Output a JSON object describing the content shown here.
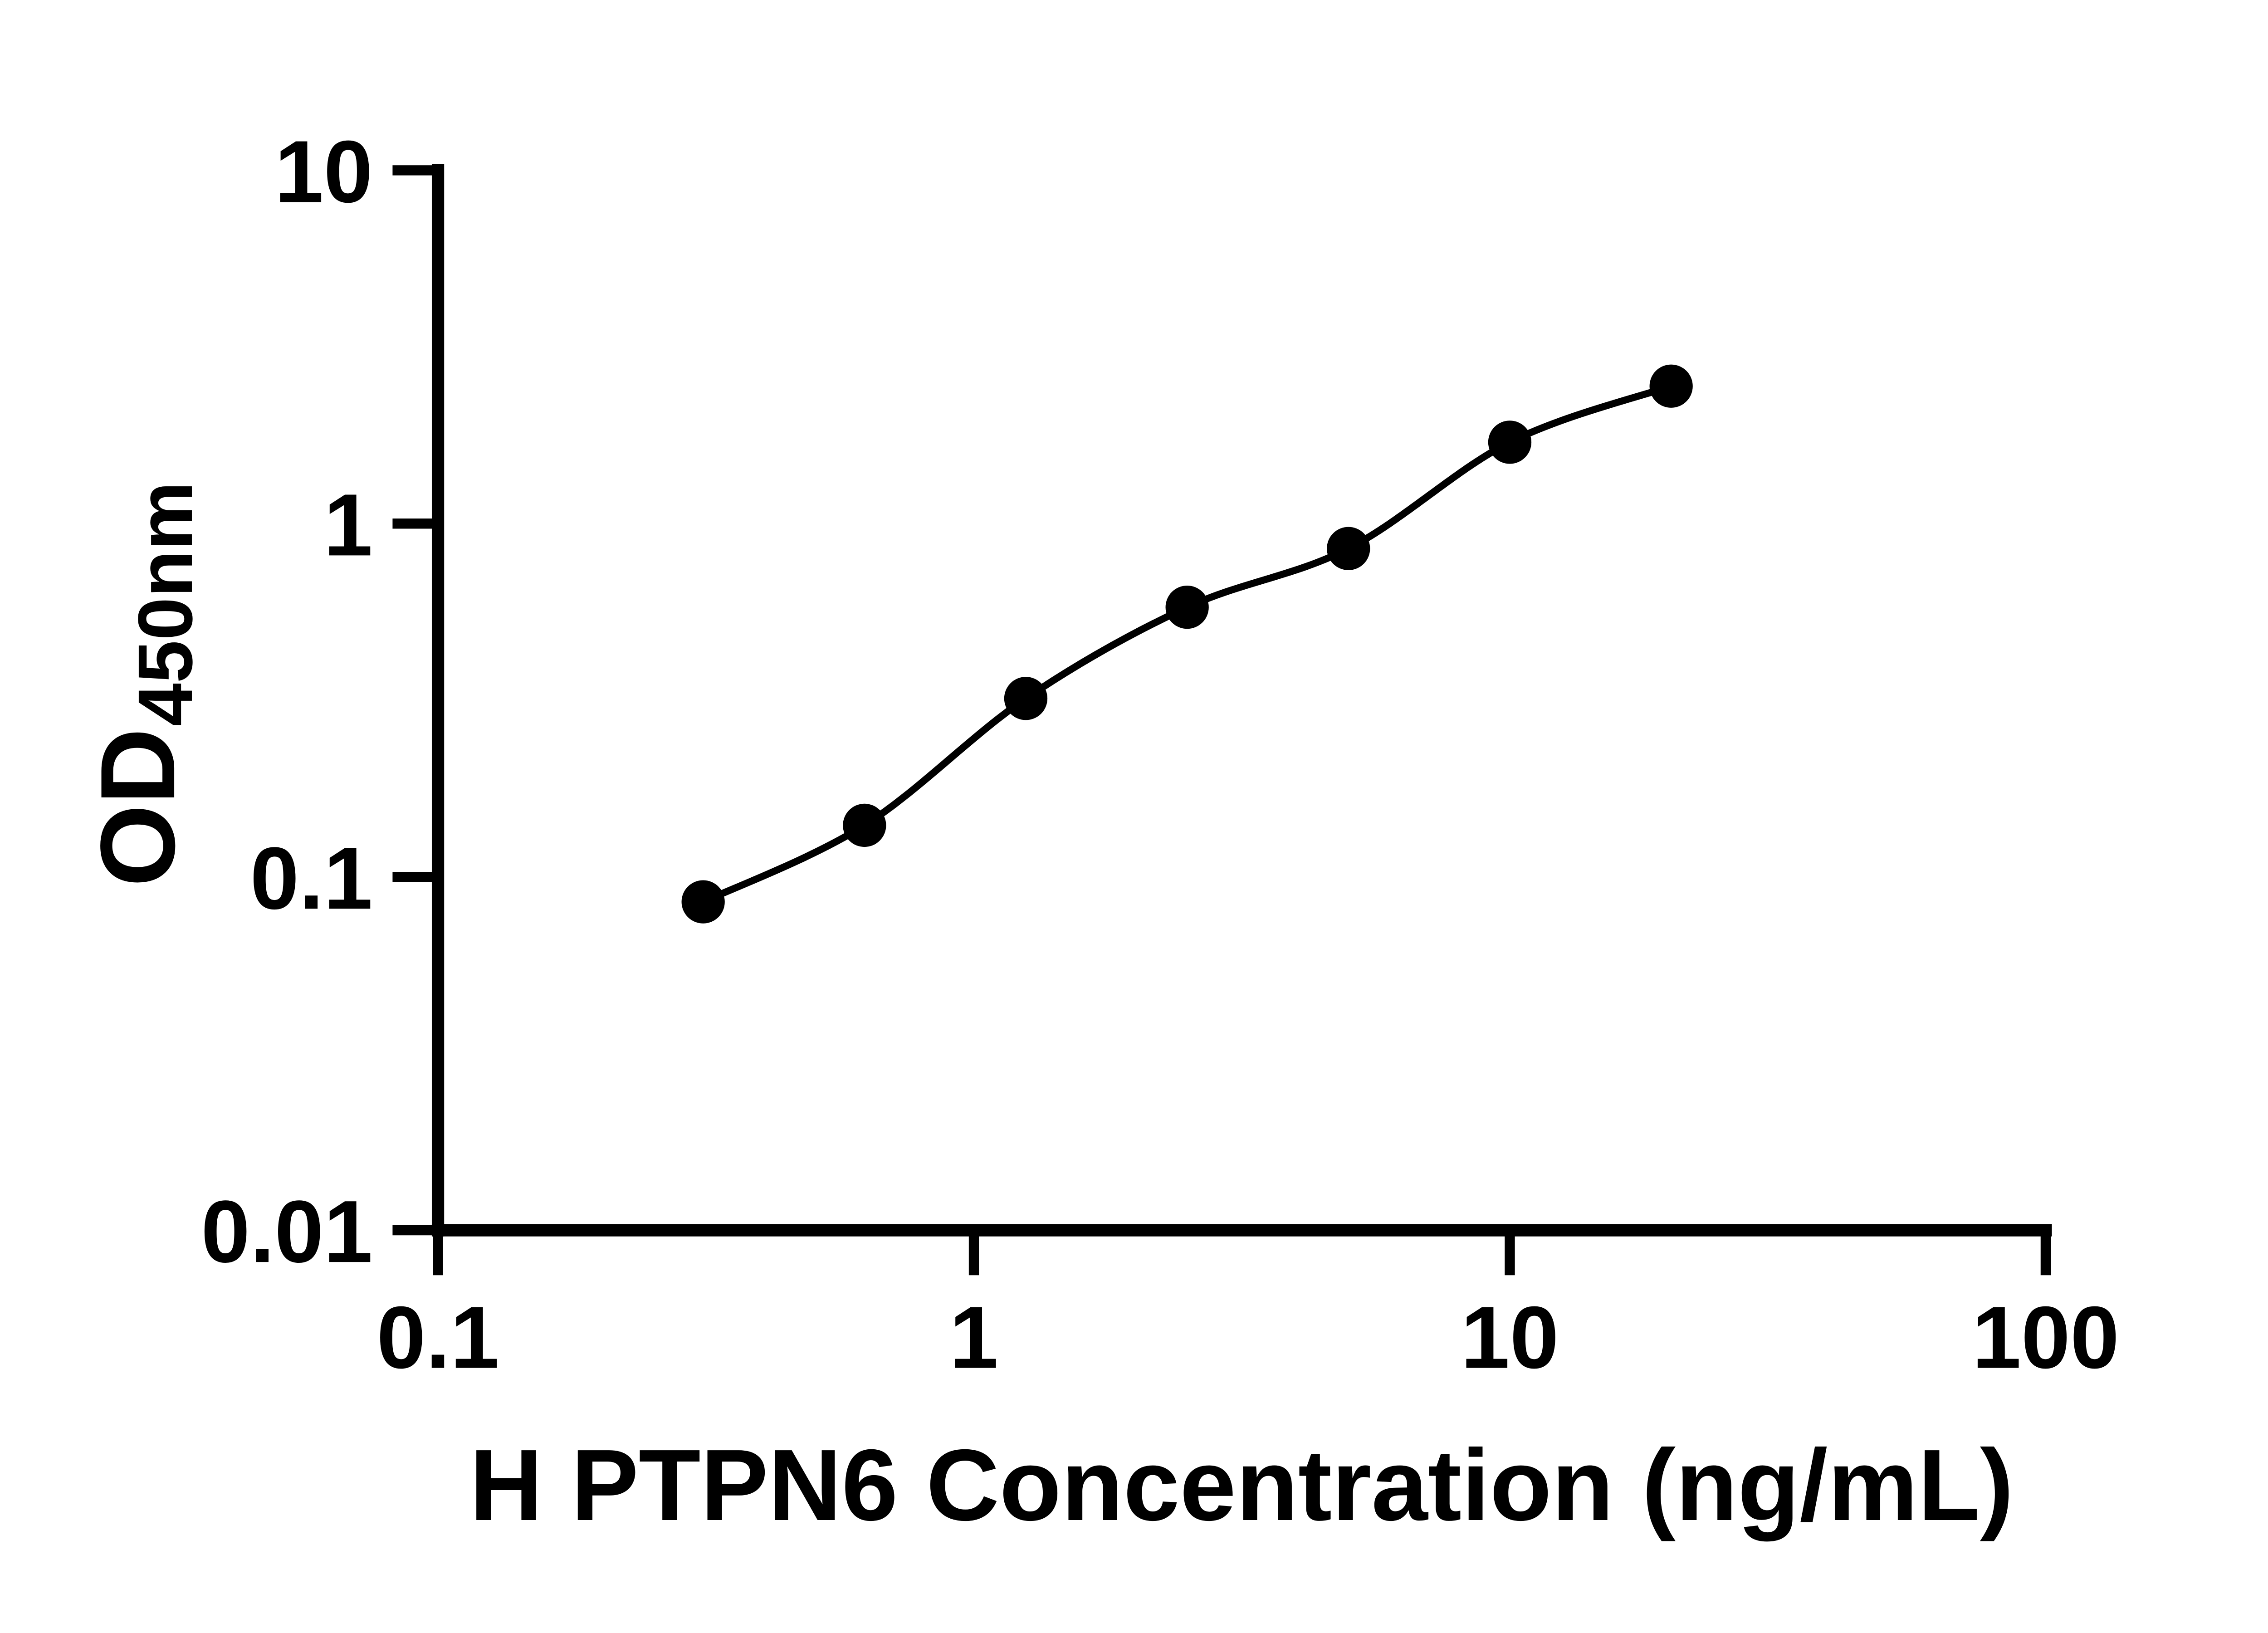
{
  "chart_data": {
    "type": "scatter",
    "title": "",
    "x": [
      0.3125,
      0.625,
      1.25,
      2.5,
      5,
      10,
      20
    ],
    "y": [
      0.085,
      0.14,
      0.32,
      0.58,
      0.85,
      1.7,
      2.45
    ],
    "xlabel": "H PTPN6 Concentration (ng/mL)",
    "ylabel": "OD450nm",
    "ylabel_main": "OD",
    "ylabel_sub": "450nm",
    "xscale": "log",
    "yscale": "log",
    "xlim": [
      0.1,
      100
    ],
    "ylim": [
      0.01,
      10
    ],
    "x_ticks": [
      {
        "value": 0.1,
        "label": "0.1"
      },
      {
        "value": 1,
        "label": "1"
      },
      {
        "value": 10,
        "label": "10"
      },
      {
        "value": 100,
        "label": "100"
      }
    ],
    "y_ticks": [
      {
        "value": 10,
        "label": "10"
      },
      {
        "value": 1,
        "label": "1"
      },
      {
        "value": 0.1,
        "label": "0.1"
      },
      {
        "value": 0.01,
        "label": "0.01"
      }
    ],
    "grid": false,
    "legend": false,
    "curve_style": "smooth",
    "marker_shape": "circle",
    "colors": {
      "marker": "#000000",
      "line": "#000000",
      "axis": "#000000",
      "text": "#000000",
      "background": "#ffffff"
    }
  }
}
